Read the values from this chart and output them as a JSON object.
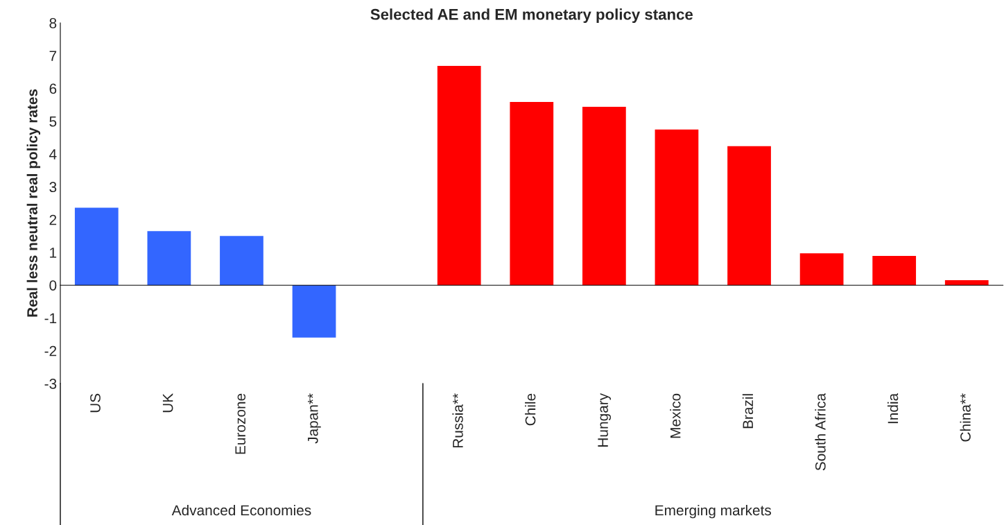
{
  "chart_data": {
    "type": "bar",
    "title": "Selected AE and EM monetary policy stance",
    "ylabel": "Real less neutral real policy rates",
    "categories": [
      "US",
      "UK",
      "Eurozone",
      "Japan**",
      null,
      "Russia**",
      "Chile",
      "Hungary",
      "Mexico",
      "Brazil",
      "South Africa",
      "India",
      "China**"
    ],
    "values": [
      2.36,
      1.65,
      1.5,
      -1.6,
      null,
      6.69,
      5.59,
      5.44,
      4.75,
      4.24,
      0.97,
      0.89,
      0.15
    ],
    "colors": [
      "#3366ff",
      "#3366ff",
      "#3366ff",
      "#3366ff",
      "#3366ff",
      "#ff0000",
      "#ff0000",
      "#ff0000",
      "#ff0000",
      "#ff0000",
      "#ff0000",
      "#ff0000",
      "#ff0000"
    ],
    "ylim": [
      -3,
      8
    ],
    "yticks": [
      -3,
      -2,
      -1,
      0,
      1,
      2,
      3,
      4,
      5,
      6,
      7,
      8
    ],
    "legend": false,
    "annotations": [
      "Advanced Economies",
      "Emerging markets"
    ]
  }
}
